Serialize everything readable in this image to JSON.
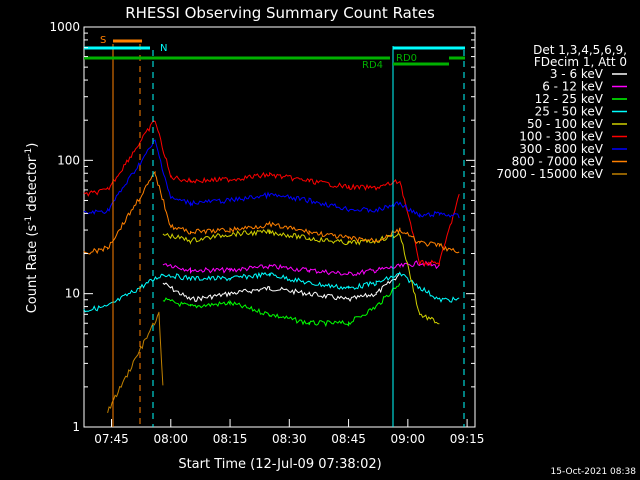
{
  "chart_data": {
    "type": "line",
    "title": "RHESSI Observing Summary Count Rates",
    "xlabel": "Start Time (12-Jul-09 07:38:02)",
    "ylabel_prefix": "Count Rate (s",
    "ylabel_exp": "-1",
    "ylabel_mid": " detector",
    "ylabel_suffix": ")",
    "yscale": "log",
    "ylim": [
      1,
      1000
    ],
    "xlim": [
      "07:38:02",
      "09:17:00"
    ],
    "x_ticks": [
      "07:45",
      "08:00",
      "08:15",
      "08:30",
      "08:45",
      "09:00",
      "09:15"
    ],
    "y_ticks": [
      "1",
      "10",
      "100",
      "1000"
    ],
    "grid": false,
    "legend_position": "right",
    "legend_header": [
      "Det 1,3,4,5,6,9,",
      "FDecim 1, Att 0"
    ],
    "footer_date": "15-Oct-2021 08:38",
    "series": [
      {
        "name": "3 - 6 keV",
        "color": "#ffffff",
        "x": [
          "07:50",
          "07:58",
          "08:05",
          "08:15",
          "08:25",
          "08:35",
          "08:45",
          "08:52",
          "08:58"
        ],
        "y": [
          null,
          12,
          9,
          10,
          11,
          10,
          9,
          10,
          14
        ]
      },
      {
        "name": "6 - 12 keV",
        "color": "#ff00ff",
        "x": [
          "07:58",
          "08:05",
          "08:15",
          "08:25",
          "08:35",
          "08:45",
          "08:52",
          "08:58",
          "09:03",
          "09:08"
        ],
        "y": [
          17,
          15,
          15,
          16,
          15,
          14,
          15,
          16,
          17,
          16
        ]
      },
      {
        "name": "12 - 25 keV",
        "color": "#00ff00",
        "x": [
          "07:58",
          "08:05",
          "08:15",
          "08:25",
          "08:35",
          "08:45",
          "08:52",
          "08:58"
        ],
        "y": [
          9,
          8,
          8.5,
          7,
          6,
          6,
          8,
          12
        ]
      },
      {
        "name": "25 - 50 keV",
        "color": "#00ffff",
        "x": [
          "07:38",
          "07:44",
          "07:58",
          "08:05",
          "08:15",
          "08:25",
          "08:35",
          "08:45",
          "08:52",
          "08:58",
          "09:08",
          "09:13"
        ],
        "y": [
          7.5,
          8,
          14,
          13,
          13,
          14,
          12,
          11,
          12,
          14,
          9,
          9
        ]
      },
      {
        "name": "50 - 100 keV",
        "color": "#d0d000",
        "x": [
          "07:58",
          "08:05",
          "08:15",
          "08:25",
          "08:35",
          "08:45",
          "08:52",
          "08:58",
          "09:03",
          "09:08"
        ],
        "y": [
          28,
          25,
          28,
          29,
          26,
          24,
          25,
          28,
          7,
          6
        ]
      },
      {
        "name": "100 - 300 keV",
        "color": "#ff0000",
        "x": [
          "07:38",
          "07:44",
          "07:56",
          "08:00",
          "08:05",
          "08:15",
          "08:25",
          "08:35",
          "08:45",
          "08:52",
          "08:58",
          "09:03",
          "09:08",
          "09:13"
        ],
        "y": [
          55,
          60,
          200,
          75,
          70,
          72,
          78,
          70,
          63,
          62,
          70,
          17,
          17,
          55
        ]
      },
      {
        "name": "300 - 800 keV",
        "color": "#0000ff",
        "x": [
          "07:38",
          "07:44",
          "07:56",
          "08:00",
          "08:05",
          "08:15",
          "08:25",
          "08:35",
          "08:45",
          "08:52",
          "08:58",
          "09:03",
          "09:08",
          "09:13"
        ],
        "y": [
          40,
          42,
          140,
          52,
          48,
          50,
          55,
          50,
          43,
          42,
          48,
          38,
          40,
          38
        ]
      },
      {
        "name": "800 - 7000 keV",
        "color": "#ff8000",
        "x": [
          "07:38",
          "07:44",
          "07:56",
          "08:00",
          "08:05",
          "08:15",
          "08:25",
          "08:35",
          "08:45",
          "08:52",
          "08:58",
          "09:03",
          "09:08",
          "09:13"
        ],
        "y": [
          20,
          22,
          80,
          32,
          29,
          30,
          33,
          29,
          26,
          25,
          30,
          24,
          23,
          20
        ]
      },
      {
        "name": "7000 - 15000 keV",
        "color": "#c08000",
        "x": [
          "07:44",
          "07:57",
          "07:58"
        ],
        "y": [
          1.3,
          7,
          2
        ]
      }
    ],
    "annotations": [
      {
        "text": "S",
        "color": "#ff8000"
      },
      {
        "text": "N",
        "color": "#00ffff"
      },
      {
        "text": "RD4",
        "color": "#00b000"
      },
      {
        "text": "RD0",
        "color": "#00b000"
      }
    ]
  }
}
